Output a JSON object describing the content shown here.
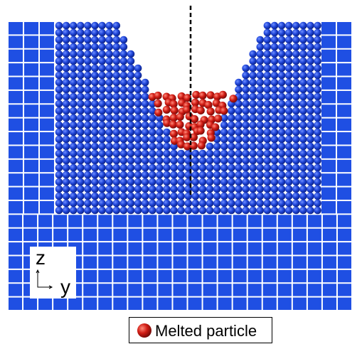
{
  "axes": {
    "vertical": "z",
    "horizontal": "y"
  },
  "legend": {
    "label": "Melted particle"
  }
}
